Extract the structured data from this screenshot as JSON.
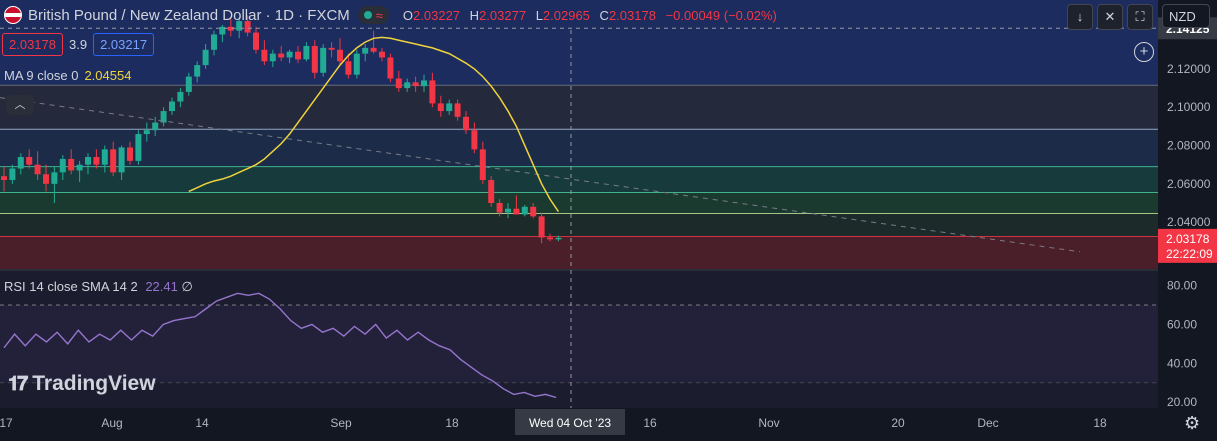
{
  "header": {
    "symbol_title": "British Pound / New Zealand Dollar · 1D · FXCM",
    "ohlc": {
      "o_label": "O",
      "o": "2.03227",
      "h_label": "H",
      "h": "2.03277",
      "l_label": "L",
      "l": "2.02965",
      "c_label": "C",
      "c": "2.03178",
      "change": "−0.00049 (−0.02%)"
    },
    "sell_price": "2.03178",
    "spread": "3.9",
    "buy_price": "2.03217",
    "currency": "NZD"
  },
  "indicators": {
    "ma_label": "MA 9 close 0",
    "ma_value": "2.04554",
    "rsi_label": "RSI 14 close SMA 14 2",
    "rsi_value": "22.41",
    "rsi_extra": "∅"
  },
  "brand": {
    "logo_text": "TradingView"
  },
  "icons": [
    "flag-icon",
    "market-status-icon",
    "wave-icon",
    "down-arrow-icon",
    "expand-icon",
    "fullscreen-icon",
    "plus-icon",
    "gear-icon",
    "chevron-up-icon"
  ],
  "colors": {
    "up": "#22ab94",
    "down": "#f23645",
    "ma": "#f0d33c",
    "rsi": "#9575cd",
    "background": "#131722"
  },
  "chart_data": [
    {
      "type": "candlestick",
      "title": "British Pound / New Zealand Dollar · 1D · FXCM",
      "y_ticks": [
        2.04,
        2.06,
        2.08,
        2.1,
        2.12
      ],
      "y_tick_labels": [
        "2.04000",
        "2.06000",
        "2.08000",
        "2.10000",
        "2.12000"
      ],
      "ylim": [
        2.015,
        2.156
      ],
      "x_tick_labels": [
        "17",
        "Aug",
        "14",
        "Sep",
        "18",
        "Wed 04 Oct '23",
        "16",
        "Nov",
        "20",
        "Dec",
        "18"
      ],
      "crosshair": {
        "price_label": "2.14125",
        "date_label": "Wed 04 Oct '23"
      },
      "last_price_label": "2.03178",
      "countdown_label": "22:22:09",
      "candles": [
        [
          2.064,
          2.069,
          2.056,
          2.062
        ],
        [
          2.062,
          2.07,
          2.06,
          2.068
        ],
        [
          2.068,
          2.076,
          2.065,
          2.074
        ],
        [
          2.074,
          2.078,
          2.068,
          2.07
        ],
        [
          2.07,
          2.077,
          2.062,
          2.065
        ],
        [
          2.065,
          2.07,
          2.056,
          2.06
        ],
        [
          2.06,
          2.069,
          2.05,
          2.066
        ],
        [
          2.066,
          2.075,
          2.062,
          2.073
        ],
        [
          2.073,
          2.078,
          2.065,
          2.067
        ],
        [
          2.067,
          2.072,
          2.061,
          2.07
        ],
        [
          2.07,
          2.076,
          2.065,
          2.074
        ],
        [
          2.074,
          2.078,
          2.068,
          2.07
        ],
        [
          2.07,
          2.08,
          2.066,
          2.078
        ],
        [
          2.078,
          2.082,
          2.064,
          2.066
        ],
        [
          2.066,
          2.08,
          2.062,
          2.079
        ],
        [
          2.079,
          2.082,
          2.07,
          2.072
        ],
        [
          2.072,
          2.088,
          2.07,
          2.086
        ],
        [
          2.086,
          2.092,
          2.082,
          2.088
        ],
        [
          2.088,
          2.095,
          2.085,
          2.092
        ],
        [
          2.092,
          2.1,
          2.09,
          2.098
        ],
        [
          2.098,
          2.105,
          2.096,
          2.103
        ],
        [
          2.103,
          2.11,
          2.1,
          2.108
        ],
        [
          2.108,
          2.118,
          2.106,
          2.116
        ],
        [
          2.116,
          2.124,
          2.113,
          2.122
        ],
        [
          2.122,
          2.133,
          2.12,
          2.13
        ],
        [
          2.13,
          2.14,
          2.127,
          2.138
        ],
        [
          2.138,
          2.143,
          2.134,
          2.142
        ],
        [
          2.142,
          2.146,
          2.137,
          2.14
        ],
        [
          2.14,
          2.147,
          2.136,
          2.145
        ],
        [
          2.145,
          2.148,
          2.137,
          2.139
        ],
        [
          2.139,
          2.142,
          2.128,
          2.13
        ],
        [
          2.13,
          2.135,
          2.122,
          2.124
        ],
        [
          2.124,
          2.13,
          2.121,
          2.128
        ],
        [
          2.128,
          2.132,
          2.124,
          2.126
        ],
        [
          2.126,
          2.13,
          2.123,
          2.129
        ],
        [
          2.129,
          2.132,
          2.123,
          2.125
        ],
        [
          2.125,
          2.134,
          2.124,
          2.132
        ],
        [
          2.132,
          2.135,
          2.115,
          2.118
        ],
        [
          2.118,
          2.133,
          2.116,
          2.131
        ],
        [
          2.131,
          2.134,
          2.126,
          2.13
        ],
        [
          2.13,
          2.136,
          2.122,
          2.124
        ],
        [
          2.124,
          2.128,
          2.115,
          2.117
        ],
        [
          2.117,
          2.13,
          2.115,
          2.128
        ],
        [
          2.128,
          2.133,
          2.124,
          2.131
        ],
        [
          2.131,
          2.14,
          2.128,
          2.129
        ],
        [
          2.129,
          2.131,
          2.124,
          2.126
        ],
        [
          2.126,
          2.128,
          2.113,
          2.115
        ],
        [
          2.115,
          2.119,
          2.108,
          2.11
        ],
        [
          2.11,
          2.115,
          2.108,
          2.113
        ],
        [
          2.113,
          2.116,
          2.108,
          2.111
        ],
        [
          2.111,
          2.117,
          2.108,
          2.114
        ],
        [
          2.114,
          2.118,
          2.1,
          2.102
        ],
        [
          2.102,
          2.106,
          2.095,
          2.098
        ],
        [
          2.098,
          2.104,
          2.096,
          2.102
        ],
        [
          2.102,
          2.104,
          2.093,
          2.095
        ],
        [
          2.095,
          2.098,
          2.086,
          2.088
        ],
        [
          2.088,
          2.092,
          2.076,
          2.078
        ],
        [
          2.078,
          2.082,
          2.06,
          2.062
        ],
        [
          2.062,
          2.064,
          2.048,
          2.05
        ],
        [
          2.05,
          2.052,
          2.043,
          2.045
        ],
        [
          2.045,
          2.05,
          2.042,
          2.047
        ],
        [
          2.047,
          2.054,
          2.044,
          2.044
        ],
        [
          2.044,
          2.049,
          2.043,
          2.048
        ],
        [
          2.048,
          2.05,
          2.042,
          2.043
        ],
        [
          2.043,
          2.045,
          2.029,
          2.032
        ],
        [
          2.032,
          2.034,
          2.03,
          2.031
        ],
        [
          2.031,
          2.033,
          2.03,
          2.0318
        ]
      ],
      "ma_values": [
        2.056,
        2.058,
        2.06,
        2.0615,
        2.0625,
        2.064,
        2.066,
        2.068,
        2.07,
        2.073,
        2.077,
        2.081,
        2.086,
        2.092,
        2.098,
        2.104,
        2.11,
        2.116,
        2.122,
        2.127,
        2.131,
        2.134,
        2.136,
        2.1365,
        2.136,
        2.135,
        2.134,
        2.133,
        2.132,
        2.131,
        2.1295,
        2.128,
        2.1255,
        2.123,
        2.12,
        2.116,
        2.111,
        2.105,
        2.098,
        2.09,
        2.08,
        2.07,
        2.06,
        2.052,
        2.0455
      ]
    },
    {
      "type": "line",
      "title": "RSI 14 close SMA 14 2",
      "ylim": [
        17,
        88
      ],
      "y_tick_labels": [
        "80.00",
        "60.00",
        "40.00",
        "20.00"
      ],
      "y_ticks": [
        80,
        60,
        40,
        20
      ],
      "bands": {
        "upper": 70,
        "lower": 30
      },
      "values": [
        48,
        55,
        49,
        55,
        51,
        56,
        50,
        57,
        51,
        55,
        52,
        57,
        52,
        57,
        54,
        60,
        62,
        63,
        64,
        68,
        72,
        74,
        76,
        75,
        76,
        73,
        68,
        62,
        58,
        60,
        56,
        58,
        54,
        59,
        55,
        60,
        53,
        57,
        52,
        56,
        52,
        49,
        47,
        42,
        38,
        34,
        31,
        27,
        24,
        25,
        23,
        24,
        22.4
      ]
    }
  ]
}
